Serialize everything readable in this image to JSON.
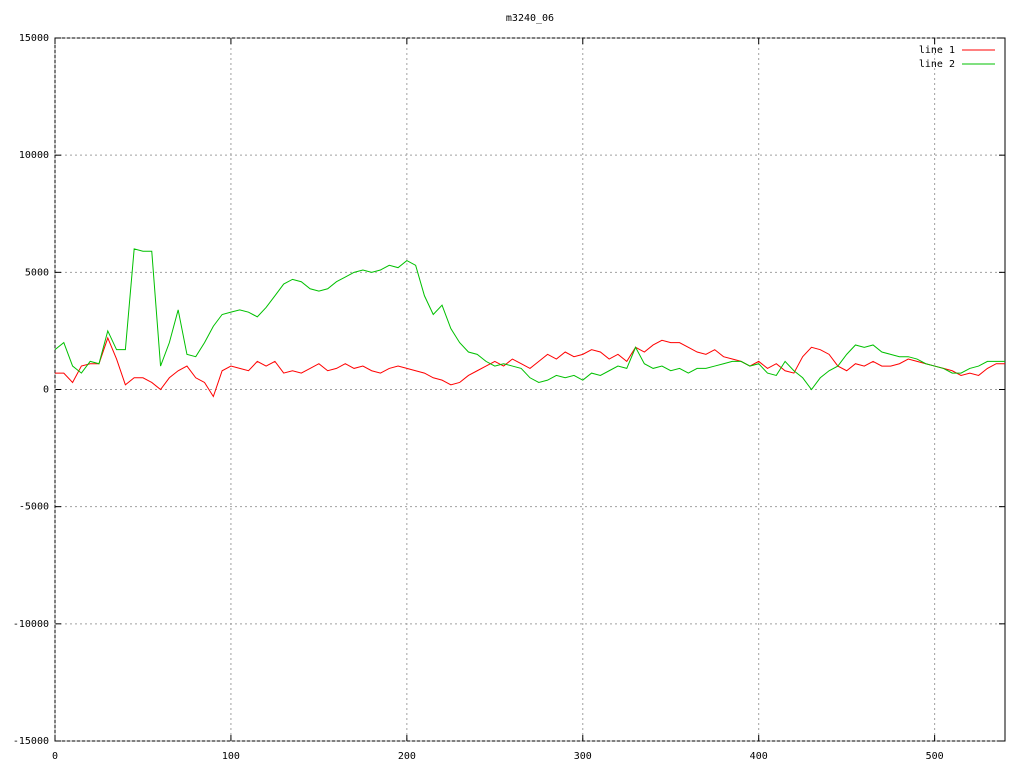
{
  "chart_data": {
    "type": "line",
    "title": "m3240_06",
    "x": [
      0,
      5,
      10,
      15,
      20,
      25,
      30,
      35,
      40,
      45,
      50,
      55,
      60,
      65,
      70,
      75,
      80,
      85,
      90,
      95,
      100,
      105,
      110,
      115,
      120,
      125,
      130,
      135,
      140,
      145,
      150,
      155,
      160,
      165,
      170,
      175,
      180,
      185,
      190,
      195,
      200,
      205,
      210,
      215,
      220,
      225,
      230,
      235,
      240,
      245,
      250,
      255,
      260,
      265,
      270,
      275,
      280,
      285,
      290,
      295,
      300,
      305,
      310,
      315,
      320,
      325,
      330,
      335,
      340,
      345,
      350,
      355,
      360,
      365,
      370,
      375,
      380,
      385,
      390,
      395,
      400,
      405,
      410,
      415,
      420,
      425,
      430,
      435,
      440,
      445,
      450,
      455,
      460,
      465,
      470,
      475,
      480,
      485,
      490,
      495,
      500,
      505,
      510,
      515,
      520,
      525,
      530,
      535,
      540
    ],
    "series": [
      {
        "name": "line 1",
        "color": "#ff0000",
        "values": [
          700,
          700,
          300,
          1000,
          1100,
          1100,
          2200,
          1300,
          200,
          500,
          500,
          300,
          0,
          500,
          800,
          1000,
          500,
          300,
          -300,
          800,
          1000,
          900,
          800,
          1200,
          1000,
          1200,
          700,
          800,
          700,
          900,
          1100,
          800,
          900,
          1100,
          900,
          1000,
          800,
          700,
          900,
          1000,
          900,
          800,
          700,
          500,
          400,
          200,
          300,
          600,
          800,
          1000,
          1200,
          1000,
          1300,
          1100,
          900,
          1200,
          1500,
          1300,
          1600,
          1400,
          1500,
          1700,
          1600,
          1300,
          1500,
          1200,
          1800,
          1600,
          1900,
          2100,
          2000,
          2000,
          1800,
          1600,
          1500,
          1700,
          1400,
          1300,
          1200,
          1000,
          1200,
          900,
          1100,
          800,
          700,
          1400,
          1800,
          1700,
          1500,
          1000,
          800,
          1100,
          1000,
          1200,
          1000,
          1000,
          1100,
          1300,
          1200,
          1100,
          1000,
          900,
          800,
          600,
          700,
          600,
          900,
          1100,
          1100
        ]
      },
      {
        "name": "line 2",
        "color": "#00c000",
        "values": [
          1700,
          2000,
          1000,
          700,
          1200,
          1100,
          2500,
          1700,
          1700,
          6000,
          5900,
          5900,
          1000,
          2000,
          3400,
          1500,
          1400,
          2000,
          2700,
          3200,
          3300,
          3400,
          3300,
          3100,
          3500,
          4000,
          4500,
          4700,
          4600,
          4300,
          4200,
          4300,
          4600,
          4800,
          5000,
          5100,
          5000,
          5100,
          5300,
          5200,
          5500,
          5300,
          4000,
          3200,
          3600,
          2600,
          2000,
          1600,
          1500,
          1200,
          1000,
          1100,
          1000,
          900,
          500,
          300,
          400,
          600,
          500,
          600,
          400,
          700,
          600,
          800,
          1000,
          900,
          1800,
          1100,
          900,
          1000,
          800,
          900,
          700,
          900,
          900,
          1000,
          1100,
          1200,
          1200,
          1000,
          1100,
          700,
          600,
          1200,
          800,
          500,
          0,
          500,
          800,
          1000,
          1500,
          1900,
          1800,
          1900,
          1600,
          1500,
          1400,
          1400,
          1300,
          1100,
          1000,
          900,
          700,
          700,
          900,
          1000,
          1200,
          1200,
          1200
        ]
      }
    ],
    "xlim": [
      0,
      540
    ],
    "ylim": [
      -15000,
      15000
    ],
    "xticks": [
      0,
      100,
      200,
      300,
      400,
      500
    ],
    "yticks": [
      -15000,
      -10000,
      -5000,
      0,
      5000,
      10000,
      15000
    ],
    "grid": true,
    "legend": "upper right"
  }
}
